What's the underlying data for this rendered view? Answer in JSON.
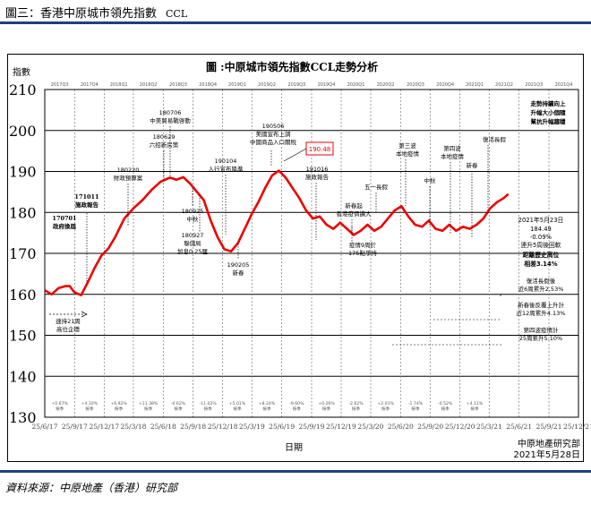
{
  "caption": {
    "main": "圖三：香港中原城市領先指數",
    "sub": "CCL"
  },
  "source": "資料來源：中原地產（香港）研究部",
  "footer": {
    "org": "中原地產研究部",
    "date": "2021年5月28日"
  },
  "colors": {
    "line": "#ee0000",
    "grid": "#000000",
    "rule": "#1f3f7f"
  },
  "chart_data": {
    "type": "line",
    "title": "圖 :中原城市領先指數CCL走勢分析",
    "ylabel": "指數",
    "xlabel": "日期",
    "ylim": [
      130,
      210
    ],
    "yticks": [
      130,
      140,
      150,
      160,
      170,
      180,
      190,
      200,
      210
    ],
    "xlim": [
      "2017-06-25",
      "2021-12-25"
    ],
    "xtick_labels": [
      {
        "date": "2017-06-25",
        "label": "25/6/17"
      },
      {
        "date": "2017-09-25",
        "label": "25/9/17"
      },
      {
        "date": "2017-12-25",
        "label": "25/12/17"
      },
      {
        "date": "2018-03-25",
        "label": "25/3/18"
      },
      {
        "date": "2018-06-25",
        "label": "25/6/18"
      },
      {
        "date": "2018-09-25",
        "label": "25/9/18"
      },
      {
        "date": "2018-12-25",
        "label": "25/12/18"
      },
      {
        "date": "2019-03-25",
        "label": "25/3/19"
      },
      {
        "date": "2019-06-25",
        "label": "25/6/19"
      },
      {
        "date": "2019-09-25",
        "label": "25/9/19"
      },
      {
        "date": "2019-12-25",
        "label": "25/12/19"
      },
      {
        "date": "2020-03-25",
        "label": "25/3/20"
      },
      {
        "date": "2020-06-25",
        "label": "25/6/20"
      },
      {
        "date": "2020-09-25",
        "label": "25/9/20"
      },
      {
        "date": "2020-12-25",
        "label": "25/12/20"
      },
      {
        "date": "2021-03-25",
        "label": "25/3/21"
      },
      {
        "date": "2021-06-25",
        "label": "25/6/21"
      },
      {
        "date": "2021-09-25",
        "label": "25/9/21"
      },
      {
        "date": "2021-12-25",
        "label": "25/12/21"
      }
    ],
    "quarter_labels": [
      "2017Q3",
      "2017Q4",
      "2018Q1",
      "2018Q2",
      "2018Q3",
      "2018Q4",
      "2019Q1",
      "2019Q2",
      "2019Q3",
      "2019Q4",
      "2020Q1",
      "2020Q2",
      "2020Q3",
      "2020Q4",
      "2021Q1",
      "2021Q2",
      "2021Q3",
      "2021Q4"
    ],
    "quarter_changes": [
      "+0.67%",
      "+4.10%",
      "+6.92%",
      "+11.38%",
      "-0.62%",
      "-11.02%",
      "+5.01%",
      "+8.24%",
      "-9.60%",
      "+0.26%",
      "-2.62%",
      "+2.01%",
      "-1.74%",
      "-0.52%",
      "+4.11%",
      "",
      "",
      ""
    ],
    "quarter_change_notes": [
      "按季",
      "按季",
      "按季",
      "按季",
      "按季",
      "按季",
      "按季",
      "按季",
      "按季",
      "按季",
      "按季",
      "按季",
      "按季",
      "按季",
      "按季",
      "",
      "",
      ""
    ],
    "series": [
      {
        "name": "",
        "x": [
          "2017-06-25",
          "2017-07-16",
          "2017-08-06",
          "2017-08-27",
          "2017-09-10",
          "2017-09-24",
          "2017-10-15",
          "2017-11-05",
          "2017-11-26",
          "2017-12-17",
          "2018-01-07",
          "2018-01-28",
          "2018-02-25",
          "2018-03-25",
          "2018-04-22",
          "2018-05-20",
          "2018-06-17",
          "2018-07-15",
          "2018-08-05",
          "2018-08-26",
          "2018-09-16",
          "2018-10-07",
          "2018-10-28",
          "2018-11-18",
          "2018-12-09",
          "2018-12-30",
          "2019-01-20",
          "2019-02-10",
          "2019-03-03",
          "2019-03-24",
          "2019-04-14",
          "2019-05-05",
          "2019-05-26",
          "2019-06-16",
          "2019-07-07",
          "2019-07-28",
          "2019-08-18",
          "2019-09-08",
          "2019-09-29",
          "2019-10-20",
          "2019-11-10",
          "2019-12-01",
          "2019-12-22",
          "2020-01-12",
          "2020-02-02",
          "2020-02-23",
          "2020-03-15",
          "2020-04-05",
          "2020-04-26",
          "2020-05-17",
          "2020-06-07",
          "2020-06-28",
          "2020-07-19",
          "2020-08-09",
          "2020-08-30",
          "2020-09-20",
          "2020-10-11",
          "2020-11-01",
          "2020-11-22",
          "2020-12-13",
          "2021-01-03",
          "2021-01-24",
          "2021-02-14",
          "2021-03-07",
          "2021-03-28",
          "2021-04-18",
          "2021-05-09",
          "2021-05-23"
        ],
        "values": [
          161.0,
          160.0,
          161.5,
          162.0,
          162.0,
          160.5,
          159.8,
          163.0,
          166.5,
          169.5,
          171.2,
          174.0,
          178.5,
          181.0,
          183.0,
          185.5,
          187.5,
          188.5,
          188.0,
          188.6,
          187.0,
          185.0,
          183.0,
          178.0,
          174.0,
          171.0,
          170.5,
          172.5,
          176.0,
          179.5,
          182.5,
          186.0,
          189.0,
          190.2,
          188.5,
          186.0,
          183.5,
          180.5,
          178.5,
          179.0,
          177.0,
          176.0,
          177.5,
          176.0,
          174.5,
          175.5,
          177.0,
          175.5,
          176.5,
          178.5,
          180.5,
          181.5,
          179.0,
          177.0,
          176.5,
          178.0,
          176.0,
          175.5,
          177.0,
          175.5,
          176.5,
          176.0,
          177.0,
          178.5,
          181.0,
          182.5,
          183.5,
          184.49
        ]
      }
    ],
    "annotations": [
      {
        "label": "170701 政府換屆"
      },
      {
        "label": "171011 施政報告"
      },
      {
        "label": "180220 財政預算案"
      },
      {
        "label": "180629 六招新房策"
      },
      {
        "label": "180706 中美貿易戰啓動"
      },
      {
        "label": "180925 中秋"
      },
      {
        "label": "180927 聯儲局 加息0.25厘"
      },
      {
        "label": "190104 人行宣布降準"
      },
      {
        "label": "190205 新春"
      },
      {
        "label": "190506 美國宣布上調 中國商品入口關稅"
      },
      {
        "label": "190.48"
      },
      {
        "label": "191016 施政報告"
      },
      {
        "label": "新春起 香港疫情擴大"
      },
      {
        "label": "五一長假"
      },
      {
        "label": "疫情9周於 175點爭持"
      },
      {
        "label": "第三波 本地疫情"
      },
      {
        "label": "中秋"
      },
      {
        "label": "第四波 本地疫情"
      },
      {
        "label": "新春"
      },
      {
        "label": "復活長假"
      },
      {
        "label": "走勢持續向上 升幅大小個隨 幫抗升幅趨穩"
      },
      {
        "label": "速持21周 高位企穩"
      },
      {
        "label": "2021年5月23日"
      },
      {
        "label": "184.49"
      },
      {
        "label": "-0.09%"
      },
      {
        "label": "連升5周後回軟"
      },
      {
        "label": "距離歷史高位"
      },
      {
        "label": "相差3.14%"
      },
      {
        "label": "復活長假後 近6周累升2.53%"
      },
      {
        "label": "新春後反覆上升計 近12周累升4.13%"
      },
      {
        "label": "第四波疫情計 25周累升5.10%"
      }
    ]
  }
}
